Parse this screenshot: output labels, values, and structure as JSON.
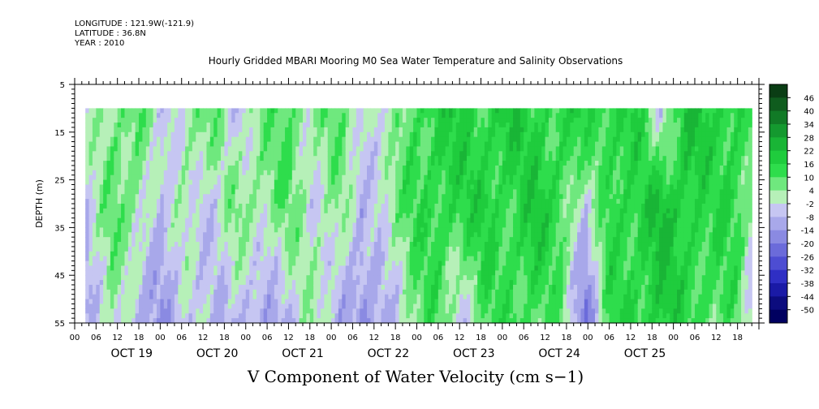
{
  "header": {
    "longitude": "LONGITUDE : 121.9W(-121.9)",
    "latitude": "LATITUDE : 36.8N",
    "year": "YEAR : 2010"
  },
  "chart_data": {
    "type": "heatmap",
    "title": "Hourly Gridded MBARI Mooring M0 Sea Water Temperature and Salinity Observations",
    "xlabel": "V Component of Water Velocity (cm s−1)",
    "ylabel": "DEPTH (m)",
    "ylim": [
      5,
      55
    ],
    "y_ticks": [
      "5",
      "15",
      "25",
      "35",
      "45",
      "55"
    ],
    "x_hour_ticks": [
      "00",
      "06",
      "12",
      "18",
      "00",
      "06",
      "12",
      "18",
      "00",
      "06",
      "12",
      "18",
      "00",
      "06",
      "12",
      "18",
      "00",
      "06",
      "12",
      "18",
      "00",
      "06",
      "12",
      "18",
      "00",
      "06",
      "12",
      "18",
      "00",
      "06",
      "12",
      "18"
    ],
    "x_day_labels": [
      "OCT 19",
      "OCT 20",
      "OCT 21",
      "OCT 22",
      "OCT 23",
      "OCT 24",
      "OCT 25"
    ],
    "x_range_hours": [
      0,
      192
    ],
    "data_start_hour": 3,
    "data_end_hour": 190,
    "data_top_depth_m": 10,
    "colorbar_levels": [
      "46",
      "40",
      "34",
      "28",
      "22",
      "16",
      "10",
      "4",
      "-2",
      "-8",
      "-14",
      "-20",
      "-26",
      "-32",
      "-38",
      "-44",
      "-50"
    ],
    "colorbar_colors": [
      "#0a3d14",
      "#0f5c1e",
      "#117a26",
      "#14992f",
      "#19b536",
      "#1fcc3d",
      "#2edd4c",
      "#6fe87e",
      "#b6f0b8",
      "#c6c6f2",
      "#a8a8ea",
      "#8a8ae2",
      "#6b6bda",
      "#4d4dd2",
      "#2f2fc4",
      "#1a1aa6",
      "#0c0c7e",
      "#000060"
    ],
    "depth_profile": {
      "columns_hours": [
        3,
        10,
        17,
        24,
        31,
        38,
        45,
        52,
        59,
        66,
        73,
        80,
        87,
        94,
        101,
        108,
        115,
        122,
        129,
        136,
        143,
        150,
        157,
        164,
        171,
        178,
        185,
        190
      ],
      "surface_10m": [
        -2,
        6,
        10,
        -6,
        4,
        8,
        -4,
        6,
        10,
        4,
        8,
        2,
        -4,
        12,
        16,
        18,
        14,
        20,
        16,
        12,
        18,
        14,
        16,
        -4,
        20,
        18,
        16,
        8
      ],
      "mid_30m": [
        -4,
        8,
        6,
        -8,
        2,
        -6,
        6,
        4,
        8,
        -2,
        6,
        -10,
        4,
        10,
        16,
        14,
        18,
        12,
        20,
        14,
        -6,
        16,
        14,
        22,
        18,
        12,
        16,
        4
      ],
      "deep_50m": [
        -8,
        2,
        -10,
        -12,
        -6,
        -4,
        -8,
        -14,
        -6,
        2,
        -6,
        -14,
        -12,
        6,
        10,
        -4,
        8,
        14,
        10,
        6,
        -20,
        12,
        16,
        18,
        14,
        10,
        8,
        -12
      ]
    }
  }
}
